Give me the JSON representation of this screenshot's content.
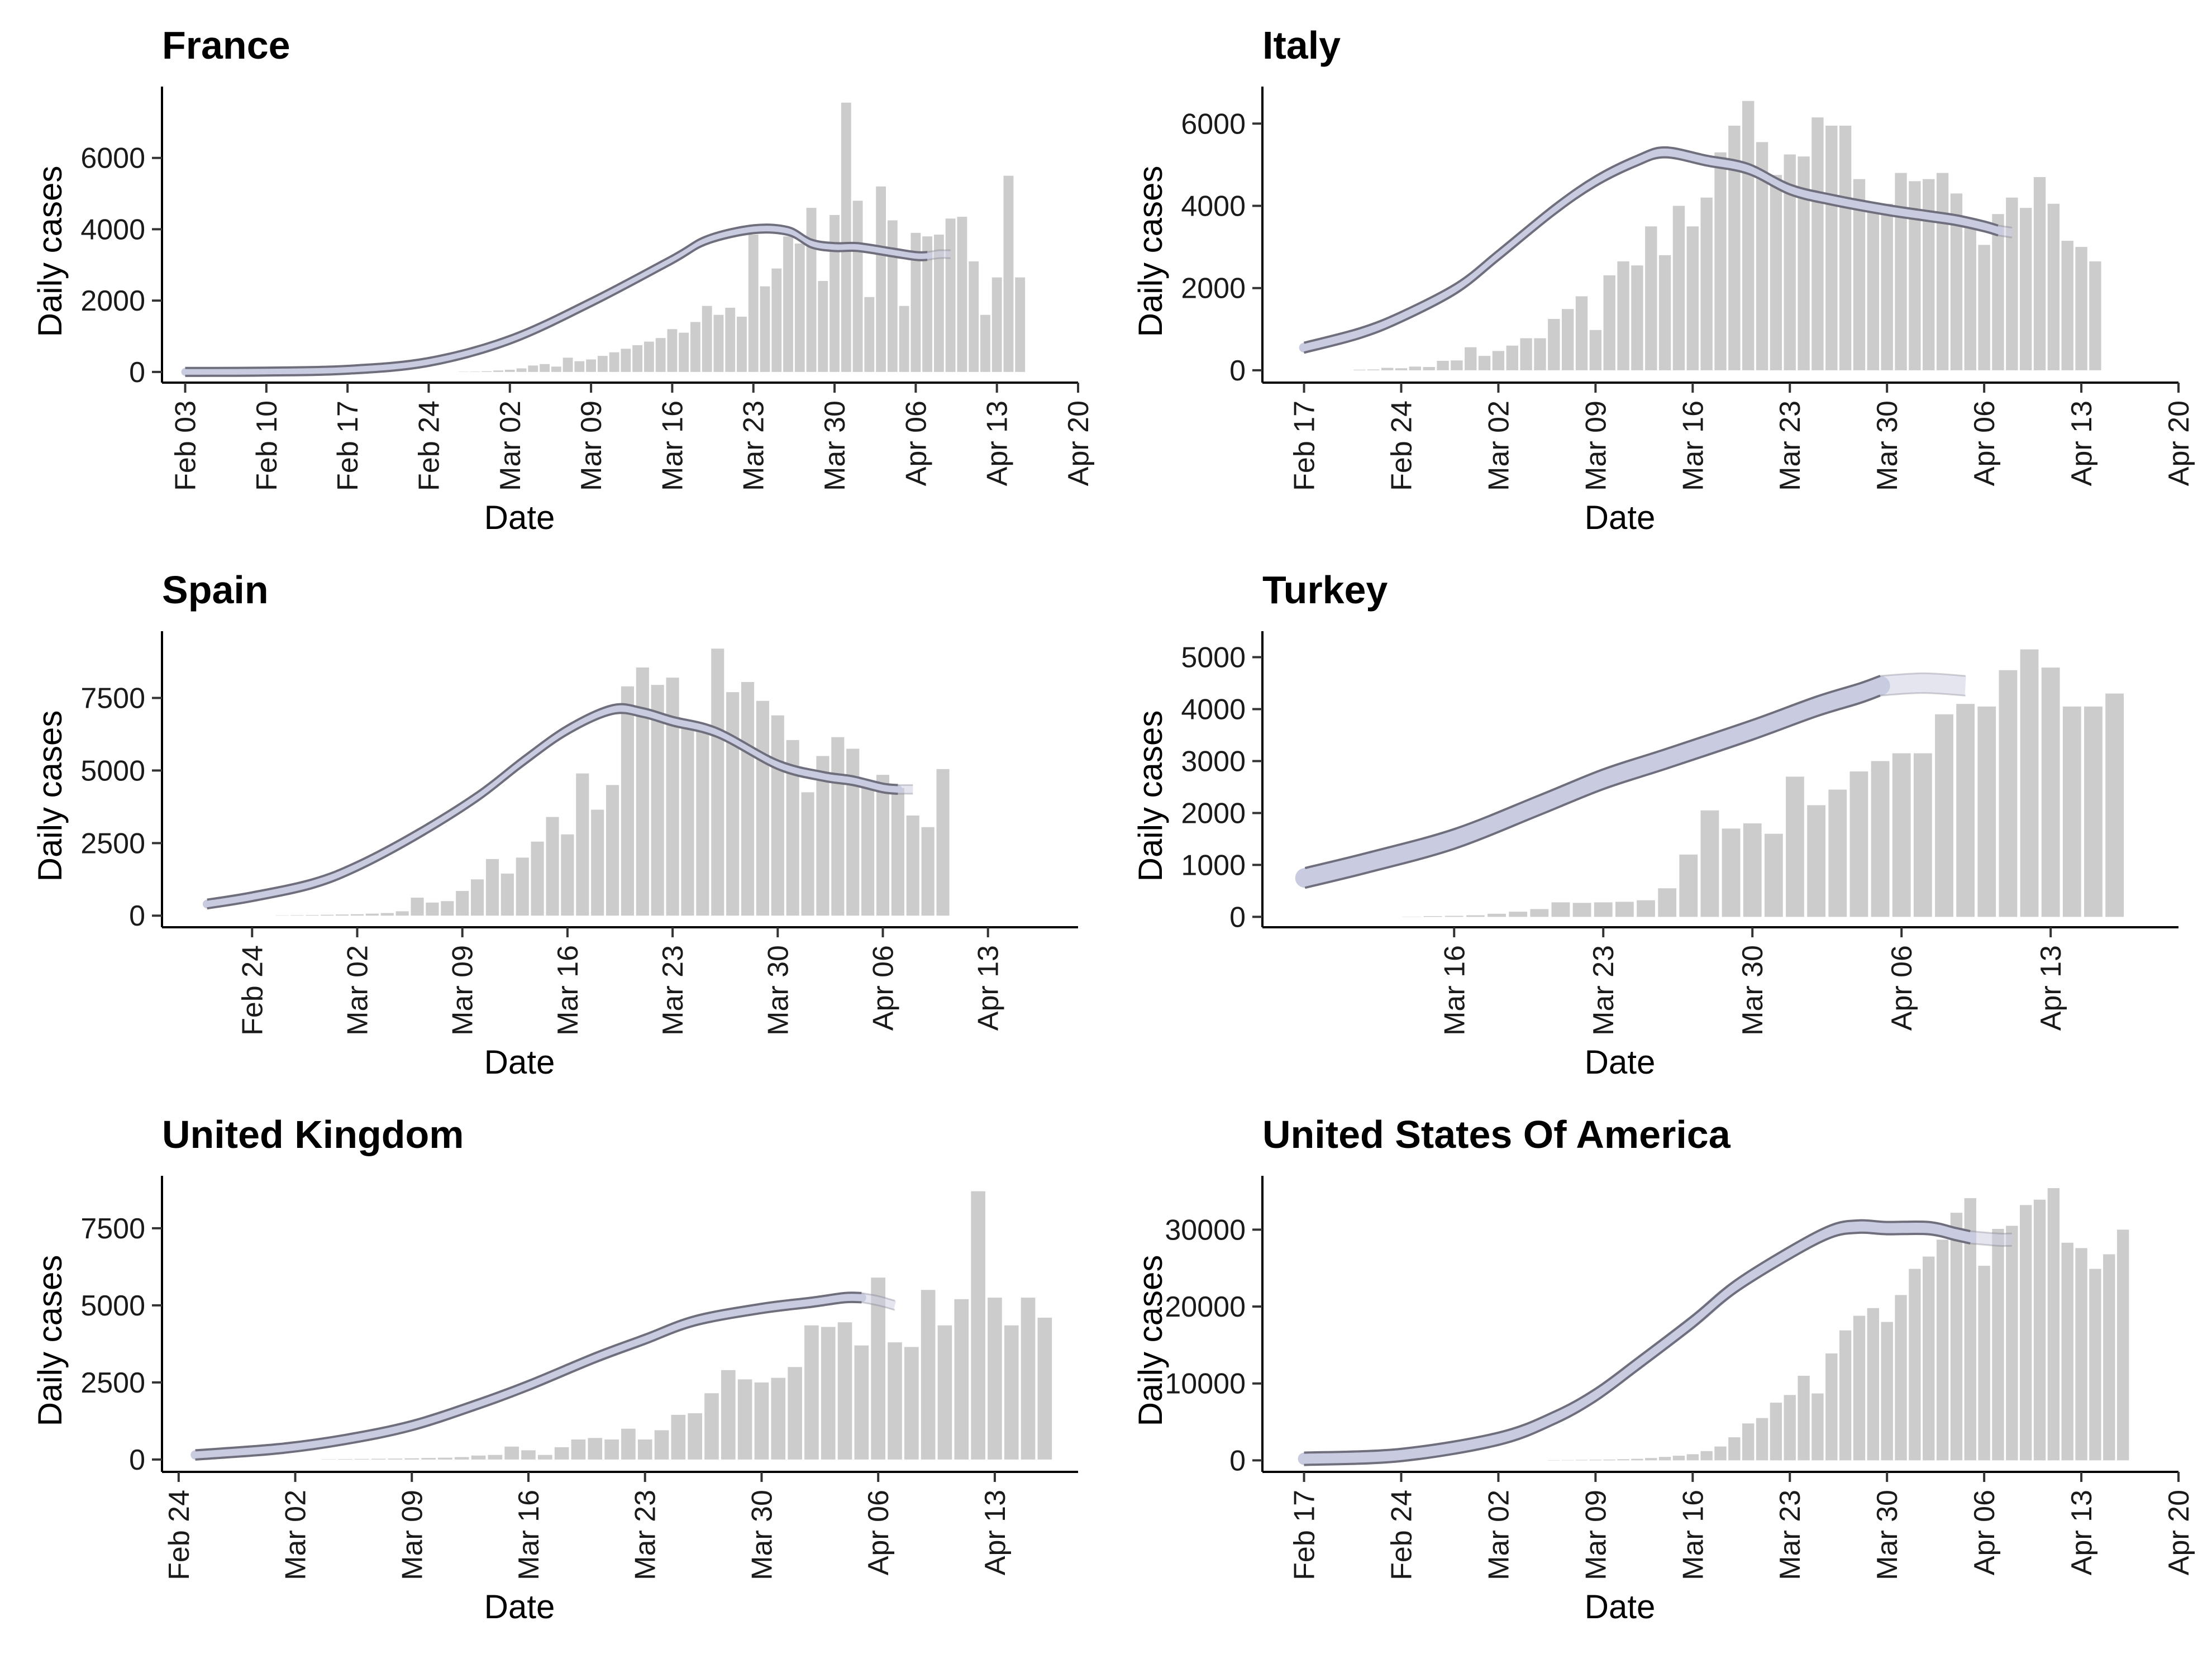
{
  "chart_data": [
    {
      "type": "bar",
      "title": "France",
      "xlabel": "Date",
      "ylabel": "Daily cases",
      "x_range": [
        "2020-02-01",
        "2020-04-20"
      ],
      "ylim": [
        -300,
        8000
      ],
      "y_ticks": [
        0,
        2000,
        4000,
        6000
      ],
      "x_ticks": [
        {
          "date": "2020-02-03",
          "label": "Feb 03"
        },
        {
          "date": "2020-02-10",
          "label": "Feb 10"
        },
        {
          "date": "2020-02-17",
          "label": "Feb 17"
        },
        {
          "date": "2020-02-24",
          "label": "Feb 24"
        },
        {
          "date": "2020-03-02",
          "label": "Mar 02"
        },
        {
          "date": "2020-03-09",
          "label": "Mar 09"
        },
        {
          "date": "2020-03-16",
          "label": "Mar 16"
        },
        {
          "date": "2020-03-23",
          "label": "Mar 23"
        },
        {
          "date": "2020-03-30",
          "label": "Mar 30"
        },
        {
          "date": "2020-04-06",
          "label": "Apr 06"
        },
        {
          "date": "2020-04-13",
          "label": "Apr 13"
        },
        {
          "date": "2020-04-20",
          "label": "Apr 20"
        }
      ],
      "bars": {
        "start": "2020-02-27",
        "values": [
          5,
          10,
          20,
          40,
          60,
          100,
          180,
          220,
          150,
          400,
          300,
          350,
          450,
          550,
          650,
          750,
          850,
          950,
          1200,
          1100,
          1400,
          1850,
          1600,
          1800,
          1550,
          3850,
          2400,
          2900,
          3800,
          3600,
          4600,
          2550,
          4400,
          7550,
          4800,
          2100,
          5200,
          4250,
          1850,
          3900,
          3800,
          3850,
          4300,
          4350,
          3100,
          1600,
          2650,
          5500,
          2650
        ]
      },
      "trend": {
        "band_color": "#c9cce0",
        "line_color": "#6e6e7c",
        "solid": [
          [
            "2020-02-03",
            0
          ],
          [
            "2020-02-10",
            10
          ],
          [
            "2020-02-17",
            60
          ],
          [
            "2020-02-24",
            280
          ],
          [
            "2020-03-02",
            900
          ],
          [
            "2020-03-09",
            1950
          ],
          [
            "2020-03-16",
            3150
          ],
          [
            "2020-03-19",
            3700
          ],
          [
            "2020-03-23",
            4000
          ],
          [
            "2020-03-26",
            3950
          ],
          [
            "2020-03-28",
            3600
          ],
          [
            "2020-03-30",
            3500
          ],
          [
            "2020-04-01",
            3500
          ],
          [
            "2020-04-04",
            3350
          ],
          [
            "2020-04-06",
            3250
          ],
          [
            "2020-04-07",
            3250
          ]
        ],
        "faded": [
          [
            "2020-04-07",
            3250
          ],
          [
            "2020-04-08",
            3300
          ],
          [
            "2020-04-09",
            3300
          ]
        ],
        "band": 110
      }
    },
    {
      "type": "bar",
      "title": "Italy",
      "xlabel": "Date",
      "ylabel": "Daily cases",
      "x_range": [
        "2020-02-14",
        "2020-04-20"
      ],
      "ylim": [
        -300,
        6900
      ],
      "y_ticks": [
        0,
        2000,
        4000,
        6000
      ],
      "x_ticks": [
        {
          "date": "2020-02-17",
          "label": "Feb 17"
        },
        {
          "date": "2020-02-24",
          "label": "Feb 24"
        },
        {
          "date": "2020-03-02",
          "label": "Mar 02"
        },
        {
          "date": "2020-03-09",
          "label": "Mar 09"
        },
        {
          "date": "2020-03-16",
          "label": "Mar 16"
        },
        {
          "date": "2020-03-23",
          "label": "Mar 23"
        },
        {
          "date": "2020-03-30",
          "label": "Mar 30"
        },
        {
          "date": "2020-04-06",
          "label": "Apr 06"
        },
        {
          "date": "2020-04-13",
          "label": "Apr 13"
        },
        {
          "date": "2020-04-20",
          "label": "Apr 20"
        }
      ],
      "bars": {
        "start": "2020-02-21",
        "values": [
          15,
          20,
          60,
          50,
          90,
          80,
          230,
          240,
          560,
          350,
          470,
          600,
          780,
          780,
          1250,
          1490,
          1800,
          980,
          2310,
          2650,
          2550,
          3500,
          2800,
          4000,
          3500,
          4200,
          5300,
          5950,
          6550,
          5550,
          4750,
          5250,
          5200,
          6150,
          5950,
          5950,
          4650,
          4050,
          4050,
          4800,
          4600,
          4650,
          4800,
          4300,
          3600,
          3050,
          3800,
          4200,
          3950,
          4700,
          4050,
          3150,
          3000,
          2650
        ]
      },
      "trend": {
        "band_color": "#c9cce0",
        "line_color": "#6e6e7c",
        "solid": [
          [
            "2020-02-17",
            550
          ],
          [
            "2020-02-21",
            900
          ],
          [
            "2020-02-24",
            1300
          ],
          [
            "2020-02-28",
            2000
          ],
          [
            "2020-03-02",
            2800
          ],
          [
            "2020-03-06",
            3900
          ],
          [
            "2020-03-09",
            4600
          ],
          [
            "2020-03-12",
            5100
          ],
          [
            "2020-03-14",
            5300
          ],
          [
            "2020-03-17",
            5100
          ],
          [
            "2020-03-20",
            4900
          ],
          [
            "2020-03-23",
            4400
          ],
          [
            "2020-03-26",
            4150
          ],
          [
            "2020-03-30",
            3900
          ],
          [
            "2020-04-02",
            3750
          ],
          [
            "2020-04-04",
            3650
          ],
          [
            "2020-04-06",
            3500
          ],
          [
            "2020-04-07",
            3400
          ]
        ],
        "faded": [
          [
            "2020-04-07",
            3400
          ],
          [
            "2020-04-08",
            3350
          ]
        ],
        "band": 120
      }
    },
    {
      "type": "bar",
      "title": "Spain",
      "xlabel": "Date",
      "ylabel": "Daily cases",
      "x_range": [
        "2020-02-18",
        "2020-04-19"
      ],
      "ylim": [
        -400,
        9800
      ],
      "y_ticks": [
        0,
        2500,
        5000,
        7500
      ],
      "x_ticks": [
        {
          "date": "2020-02-24",
          "label": "Feb 24"
        },
        {
          "date": "2020-03-02",
          "label": "Mar 02"
        },
        {
          "date": "2020-03-09",
          "label": "Mar 09"
        },
        {
          "date": "2020-03-16",
          "label": "Mar 16"
        },
        {
          "date": "2020-03-23",
          "label": "Mar 23"
        },
        {
          "date": "2020-03-30",
          "label": "Mar 30"
        },
        {
          "date": "2020-04-06",
          "label": "Apr 06"
        },
        {
          "date": "2020-04-13",
          "label": "Apr 13"
        }
      ],
      "bars": {
        "start": "2020-02-26",
        "values": [
          10,
          15,
          20,
          30,
          40,
          50,
          70,
          90,
          150,
          620,
          450,
          500,
          850,
          1250,
          1950,
          1450,
          2000,
          2550,
          3400,
          2800,
          4900,
          3650,
          4500,
          7900,
          8550,
          7950,
          8200,
          6500,
          6350,
          9200,
          7700,
          8050,
          7400,
          6900,
          6050,
          4250,
          5500,
          6150,
          5750,
          4550,
          4850,
          4400,
          3450,
          3050,
          5050
        ]
      },
      "trend": {
        "band_color": "#c9cce0",
        "line_color": "#6e6e7c",
        "solid": [
          [
            "2020-02-21",
            400
          ],
          [
            "2020-02-24",
            650
          ],
          [
            "2020-02-28",
            1100
          ],
          [
            "2020-03-02",
            1700
          ],
          [
            "2020-03-06",
            2800
          ],
          [
            "2020-03-10",
            4100
          ],
          [
            "2020-03-13",
            5300
          ],
          [
            "2020-03-16",
            6400
          ],
          [
            "2020-03-19",
            7100
          ],
          [
            "2020-03-21",
            7000
          ],
          [
            "2020-03-23",
            6700
          ],
          [
            "2020-03-26",
            6300
          ],
          [
            "2020-03-30",
            5200
          ],
          [
            "2020-04-02",
            4800
          ],
          [
            "2020-04-04",
            4650
          ],
          [
            "2020-04-06",
            4400
          ],
          [
            "2020-04-07",
            4350
          ]
        ],
        "faded": [
          [
            "2020-04-07",
            4350
          ],
          [
            "2020-04-08",
            4350
          ]
        ],
        "band": 150
      }
    },
    {
      "type": "bar",
      "title": "Turkey",
      "xlabel": "Date",
      "ylabel": "Daily cases",
      "x_range": [
        "2020-03-07",
        "2020-04-19"
      ],
      "ylim": [
        -200,
        5500
      ],
      "y_ticks": [
        0,
        1000,
        2000,
        3000,
        4000,
        5000
      ],
      "x_ticks": [
        {
          "date": "2020-03-16",
          "label": "Mar 16"
        },
        {
          "date": "2020-03-23",
          "label": "Mar 23"
        },
        {
          "date": "2020-03-30",
          "label": "Mar 30"
        },
        {
          "date": "2020-04-06",
          "label": "Apr 06"
        },
        {
          "date": "2020-04-13",
          "label": "Apr 13"
        }
      ],
      "bars": {
        "start": "2020-03-14",
        "values": [
          5,
          15,
          20,
          30,
          60,
          100,
          150,
          280,
          270,
          280,
          290,
          320,
          550,
          1200,
          2050,
          1700,
          1800,
          1600,
          2700,
          2150,
          2450,
          2800,
          3000,
          3150,
          3150,
          3900,
          4100,
          4050,
          4750,
          5150,
          4800,
          4050,
          4050,
          4300
        ]
      },
      "trend": {
        "band_color": "#c9cce0",
        "line_color": "#6e6e7c",
        "solid": [
          [
            "2020-03-09",
            750
          ],
          [
            "2020-03-12",
            1050
          ],
          [
            "2020-03-16",
            1500
          ],
          [
            "2020-03-20",
            2150
          ],
          [
            "2020-03-23",
            2650
          ],
          [
            "2020-03-26",
            3050
          ],
          [
            "2020-03-30",
            3600
          ],
          [
            "2020-04-02",
            4050
          ],
          [
            "2020-04-04",
            4300
          ],
          [
            "2020-04-05",
            4450
          ]
        ],
        "faded": [
          [
            "2020-04-05",
            4450
          ],
          [
            "2020-04-07",
            4500
          ],
          [
            "2020-04-09",
            4450
          ]
        ],
        "band": 190
      }
    },
    {
      "type": "bar",
      "title": "United Kingdom",
      "xlabel": "Date",
      "ylabel": "Daily cases",
      "x_range": [
        "2020-02-23",
        "2020-04-18"
      ],
      "ylim": [
        -400,
        9200
      ],
      "y_ticks": [
        0,
        2500,
        5000,
        7500
      ],
      "x_ticks": [
        {
          "date": "2020-02-24",
          "label": "Feb 24"
        },
        {
          "date": "2020-03-02",
          "label": "Mar 02"
        },
        {
          "date": "2020-03-09",
          "label": "Mar 09"
        },
        {
          "date": "2020-03-16",
          "label": "Mar 16"
        },
        {
          "date": "2020-03-23",
          "label": "Mar 23"
        },
        {
          "date": "2020-03-30",
          "label": "Mar 30"
        },
        {
          "date": "2020-04-06",
          "label": "Apr 06"
        },
        {
          "date": "2020-04-13",
          "label": "Apr 13"
        }
      ],
      "bars": {
        "start": "2020-03-04",
        "values": [
          10,
          15,
          20,
          25,
          30,
          40,
          50,
          60,
          80,
          130,
          150,
          420,
          300,
          150,
          400,
          650,
          700,
          650,
          1000,
          650,
          950,
          1450,
          1500,
          2150,
          2900,
          2600,
          2500,
          2650,
          3000,
          4350,
          4300,
          4450,
          3700,
          5900,
          3800,
          3650,
          5500,
          4350,
          5200,
          8700,
          5250,
          4350,
          5250,
          4600
        ]
      },
      "trend": {
        "band_color": "#c9cce0",
        "line_color": "#6e6e7c",
        "solid": [
          [
            "2020-02-25",
            150
          ],
          [
            "2020-03-01",
            350
          ],
          [
            "2020-03-05",
            650
          ],
          [
            "2020-03-09",
            1100
          ],
          [
            "2020-03-13",
            1800
          ],
          [
            "2020-03-16",
            2400
          ],
          [
            "2020-03-20",
            3300
          ],
          [
            "2020-03-23",
            3900
          ],
          [
            "2020-03-26",
            4500
          ],
          [
            "2020-03-30",
            4900
          ],
          [
            "2020-04-02",
            5100
          ],
          [
            "2020-04-04",
            5250
          ],
          [
            "2020-04-05",
            5250
          ]
        ],
        "faded": [
          [
            "2020-04-05",
            5250
          ],
          [
            "2020-04-06",
            5150
          ],
          [
            "2020-04-07",
            5000
          ]
        ],
        "band": 150
      }
    },
    {
      "type": "bar",
      "title": "United States Of America",
      "xlabel": "Date",
      "ylabel": "Daily cases",
      "x_range": [
        "2020-02-14",
        "2020-04-20"
      ],
      "ylim": [
        -1500,
        37000
      ],
      "y_ticks": [
        0,
        10000,
        20000,
        30000
      ],
      "x_ticks": [
        {
          "date": "2020-02-17",
          "label": "Feb 17"
        },
        {
          "date": "2020-02-24",
          "label": "Feb 24"
        },
        {
          "date": "2020-03-02",
          "label": "Mar 02"
        },
        {
          "date": "2020-03-09",
          "label": "Mar 09"
        },
        {
          "date": "2020-03-16",
          "label": "Mar 16"
        },
        {
          "date": "2020-03-23",
          "label": "Mar 23"
        },
        {
          "date": "2020-03-30",
          "label": "Mar 30"
        },
        {
          "date": "2020-04-06",
          "label": "Apr 06"
        },
        {
          "date": "2020-04-13",
          "label": "Apr 13"
        },
        {
          "date": "2020-04-20",
          "label": "Apr 20"
        }
      ],
      "bars": {
        "start": "2020-03-06",
        "values": [
          30,
          40,
          60,
          80,
          100,
          150,
          200,
          300,
          450,
          600,
          800,
          1200,
          1800,
          3000,
          4800,
          5500,
          7500,
          8500,
          11000,
          8700,
          13900,
          16900,
          18800,
          19800,
          18000,
          21500,
          24900,
          26500,
          28700,
          32200,
          34100,
          25300,
          30100,
          30500,
          33200,
          33900,
          35400,
          28300,
          27600,
          24900,
          26800,
          30000
        ]
      },
      "trend": {
        "band_color": "#c9cce0",
        "line_color": "#6e6e7c",
        "solid": [
          [
            "2020-02-17",
            200
          ],
          [
            "2020-02-24",
            700
          ],
          [
            "2020-03-02",
            2800
          ],
          [
            "2020-03-06",
            5500
          ],
          [
            "2020-03-09",
            8500
          ],
          [
            "2020-03-12",
            12500
          ],
          [
            "2020-03-16",
            18000
          ],
          [
            "2020-03-19",
            22500
          ],
          [
            "2020-03-23",
            27000
          ],
          [
            "2020-03-26",
            29800
          ],
          [
            "2020-03-28",
            30400
          ],
          [
            "2020-03-30",
            30200
          ],
          [
            "2020-04-02",
            30200
          ],
          [
            "2020-04-04",
            29400
          ],
          [
            "2020-04-05",
            29000
          ]
        ],
        "faded": [
          [
            "2020-04-05",
            29000
          ],
          [
            "2020-04-07",
            28700
          ],
          [
            "2020-04-08",
            28700
          ]
        ],
        "band": 800
      }
    }
  ]
}
